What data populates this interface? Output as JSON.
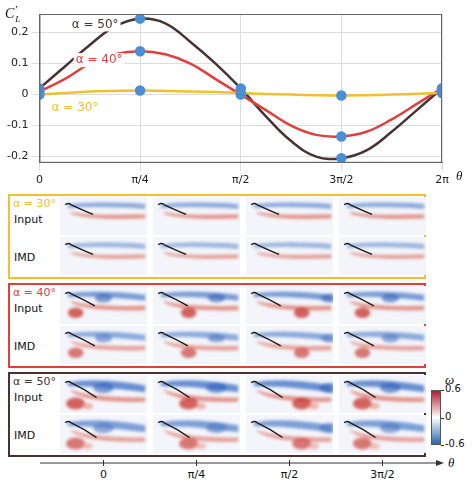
{
  "chart_data": {
    "type": "line",
    "ylabel": {
      "text": "C",
      "subscript": "L",
      "superscript": "′"
    },
    "xlabel": "θ",
    "x": [
      0,
      0.25,
      0.5,
      0.75,
      1,
      1.25,
      1.5,
      1.75,
      2,
      2.25,
      2.5,
      2.75,
      3,
      3.25,
      3.5,
      3.75,
      4
    ],
    "xlim": [
      0,
      4
    ],
    "xticks": [
      {
        "value": 0,
        "label": "0"
      },
      {
        "value": 1,
        "label": "π/4"
      },
      {
        "value": 2,
        "label": "π/2"
      },
      {
        "value": 3,
        "label": "3π/2"
      },
      {
        "value": 4,
        "label": "2π"
      }
    ],
    "ylim": [
      -0.22,
      0.26
    ],
    "yticks": [
      -0.2,
      -0.1,
      0,
      0.1,
      0.2
    ],
    "grid": true,
    "series": [
      {
        "name": "α = 30°",
        "color": "#f0c030",
        "marker": "circle",
        "values": [
          0.0,
          0.005,
          0.01,
          0.012,
          0.013,
          0.012,
          0.01,
          0.008,
          0.005,
          0.002,
          0.0,
          -0.002,
          -0.003,
          -0.002,
          0.0,
          0.003,
          0.005
        ]
      },
      {
        "name": "α = 40°",
        "color": "#e0403a",
        "marker": "circle",
        "values": [
          0.01,
          0.05,
          0.1,
          0.13,
          0.14,
          0.13,
          0.1,
          0.05,
          0.0,
          -0.05,
          -0.1,
          -0.13,
          -0.135,
          -0.12,
          -0.08,
          -0.03,
          0.02
        ]
      },
      {
        "name": "α = 50°",
        "color": "#4a3232",
        "marker": "circle",
        "values": [
          0.02,
          0.09,
          0.16,
          0.22,
          0.245,
          0.23,
          0.17,
          0.1,
          0.02,
          -0.07,
          -0.15,
          -0.2,
          -0.205,
          -0.18,
          -0.12,
          -0.05,
          0.02
        ]
      }
    ]
  },
  "snapshots": {
    "rows": [
      "Input",
      "IMD"
    ],
    "axis": {
      "label": "θ",
      "ticks": [
        "0",
        "π/4",
        "π/2",
        "3π/2"
      ]
    },
    "colorbar": {
      "label": "ω",
      "lim": [
        -0.6,
        0.6
      ],
      "ticks": [
        0.6,
        0,
        -0.6
      ]
    }
  }
}
